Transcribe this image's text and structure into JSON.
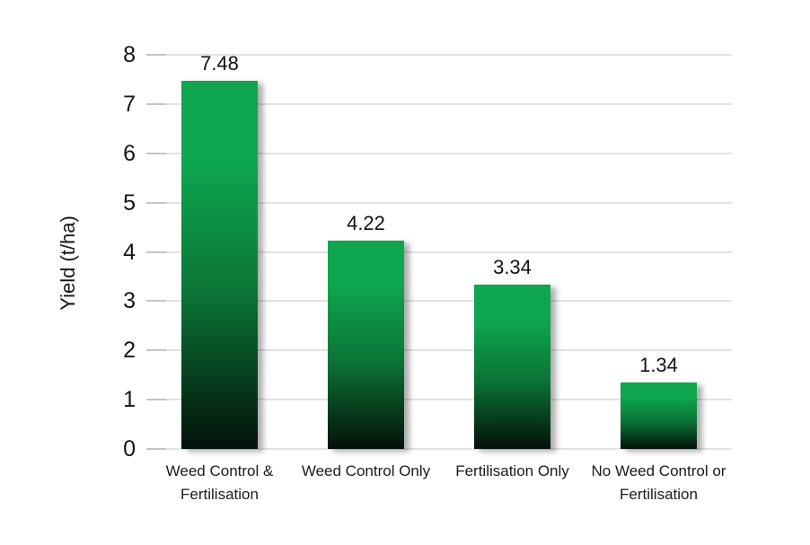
{
  "chart_data": {
    "type": "bar",
    "title": "",
    "categories": [
      "Weed Control & Fertilisation",
      "Weed Control Only",
      "Fertilisation Only",
      "No Weed Control or Fertilisation"
    ],
    "values": [
      7.48,
      4.22,
      3.34,
      1.34
    ],
    "value_labels": [
      "7.48",
      "4.22",
      "3.34",
      "1.34"
    ],
    "xlabel": "",
    "ylabel": "Yield (t/ha)",
    "ylim": [
      0,
      8
    ],
    "yticks": [
      0,
      1,
      2,
      3,
      4,
      5,
      6,
      7,
      8
    ],
    "grid": true,
    "legend": false,
    "colors": {
      "bar_gradient_top": "#0ea64e",
      "bar_gradient_mid": "#0b7436",
      "bar_gradient_bottom": "#041109",
      "gridline": "#e2e2e2",
      "tick": "#c4c4c4",
      "text": "#151515",
      "background": "#ffffff"
    }
  }
}
